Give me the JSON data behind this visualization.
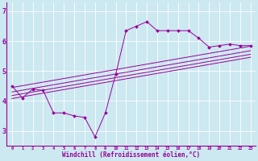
{
  "x_values": [
    0,
    1,
    2,
    3,
    4,
    5,
    6,
    7,
    8,
    9,
    10,
    11,
    12,
    13,
    14,
    15,
    16,
    17,
    18,
    19,
    20,
    21,
    22,
    23
  ],
  "y_main": [
    4.5,
    4.1,
    4.4,
    4.35,
    3.6,
    3.6,
    3.5,
    3.45,
    2.8,
    3.6,
    4.9,
    6.35,
    6.5,
    6.65,
    6.35,
    6.35,
    6.35,
    6.35,
    6.1,
    5.8,
    5.85,
    5.9,
    5.85,
    5.85
  ],
  "y_line1": [
    4.45,
    4.51,
    4.57,
    4.63,
    4.69,
    4.75,
    4.81,
    4.87,
    4.93,
    4.99,
    5.05,
    5.11,
    5.17,
    5.23,
    5.29,
    5.35,
    5.41,
    5.47,
    5.53,
    5.59,
    5.65,
    5.71,
    5.77,
    5.83
  ],
  "y_line2": [
    4.3,
    4.36,
    4.42,
    4.48,
    4.54,
    4.6,
    4.66,
    4.72,
    4.78,
    4.84,
    4.9,
    4.96,
    5.02,
    5.08,
    5.14,
    5.2,
    5.26,
    5.32,
    5.38,
    5.44,
    5.5,
    5.56,
    5.62,
    5.68
  ],
  "y_line3": [
    4.18,
    4.24,
    4.3,
    4.36,
    4.42,
    4.48,
    4.54,
    4.6,
    4.66,
    4.72,
    4.78,
    4.84,
    4.9,
    4.96,
    5.02,
    5.08,
    5.14,
    5.2,
    5.26,
    5.32,
    5.38,
    5.44,
    5.5,
    5.56
  ],
  "y_line4": [
    4.08,
    4.14,
    4.2,
    4.26,
    4.32,
    4.38,
    4.44,
    4.5,
    4.56,
    4.62,
    4.68,
    4.74,
    4.8,
    4.86,
    4.92,
    4.98,
    5.04,
    5.1,
    5.16,
    5.22,
    5.28,
    5.34,
    5.4,
    5.46
  ],
  "ylim": [
    2.5,
    7.3
  ],
  "yticks": [
    3,
    4,
    5,
    6,
    7
  ],
  "xlim": [
    -0.5,
    23.5
  ],
  "line_color": "#990099",
  "bg_color": "#cce8f0",
  "grid_color": "#aaccdd",
  "xlabel": "Windchill (Refroidissement éolien,°C)",
  "xlabel_color": "#990099",
  "tick_color": "#990099"
}
